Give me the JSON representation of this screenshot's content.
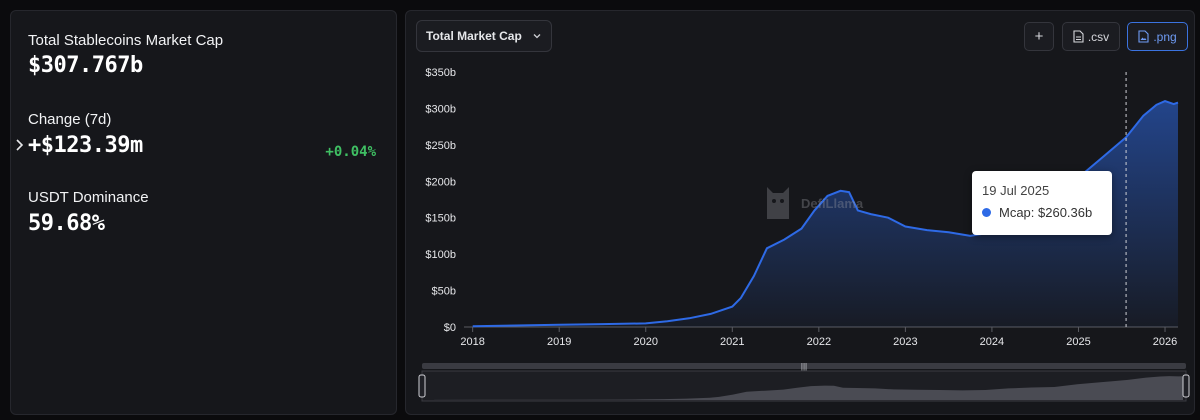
{
  "stats": {
    "market_cap_label": "Total Stablecoins Market Cap",
    "market_cap_value": "$307.767b",
    "change_label": "Change (7d)",
    "change_value": "+$123.39m",
    "change_pct": "+0.04%",
    "dominance_label": "USDT Dominance",
    "dominance_value": "59.68%"
  },
  "toolbar": {
    "metric_select": "Total Market Cap",
    "add_label": "+",
    "csv_label": ".csv",
    "png_label": ".png"
  },
  "tooltip": {
    "date": "19 Jul 2025",
    "series_label": "Mcap: $260.36b"
  },
  "watermark": {
    "text": "DefiLlama"
  },
  "colors": {
    "accent": "#2e6ae6",
    "positive": "#3fbf63",
    "panel": "#16171b"
  },
  "chart_data": {
    "type": "area",
    "y_ticks": [
      "$0",
      "$50b",
      "$100b",
      "$150b",
      "$200b",
      "$250b",
      "$300b",
      "$350b"
    ],
    "x_ticks": [
      "2018",
      "2019",
      "2020",
      "2021",
      "2022",
      "2023",
      "2024",
      "2025",
      "2026"
    ],
    "ylim": [
      0,
      350
    ],
    "xlim": [
      2017.9,
      2026.15
    ],
    "crosshair_x": 2025.55,
    "series": [
      {
        "values_unit": "billions USD",
        "points": [
          [
            2018.0,
            1
          ],
          [
            2018.5,
            2
          ],
          [
            2019.0,
            3
          ],
          [
            2019.5,
            4
          ],
          [
            2020.0,
            5
          ],
          [
            2020.25,
            8
          ],
          [
            2020.5,
            12
          ],
          [
            2020.75,
            18
          ],
          [
            2021.0,
            28
          ],
          [
            2021.1,
            40
          ],
          [
            2021.25,
            70
          ],
          [
            2021.4,
            108
          ],
          [
            2021.6,
            120
          ],
          [
            2021.8,
            135
          ],
          [
            2021.95,
            160
          ],
          [
            2022.1,
            180
          ],
          [
            2022.25,
            187
          ],
          [
            2022.35,
            185
          ],
          [
            2022.45,
            160
          ],
          [
            2022.6,
            155
          ],
          [
            2022.8,
            150
          ],
          [
            2023.0,
            138
          ],
          [
            2023.25,
            133
          ],
          [
            2023.5,
            130
          ],
          [
            2023.75,
            125
          ],
          [
            2024.0,
            130
          ],
          [
            2024.25,
            150
          ],
          [
            2024.5,
            162
          ],
          [
            2024.75,
            168
          ],
          [
            2025.0,
            205
          ],
          [
            2025.25,
            230
          ],
          [
            2025.55,
            260.36
          ],
          [
            2025.75,
            290
          ],
          [
            2025.9,
            305
          ],
          [
            2026.0,
            310
          ],
          [
            2026.1,
            306
          ],
          [
            2026.15,
            308
          ]
        ]
      }
    ]
  }
}
